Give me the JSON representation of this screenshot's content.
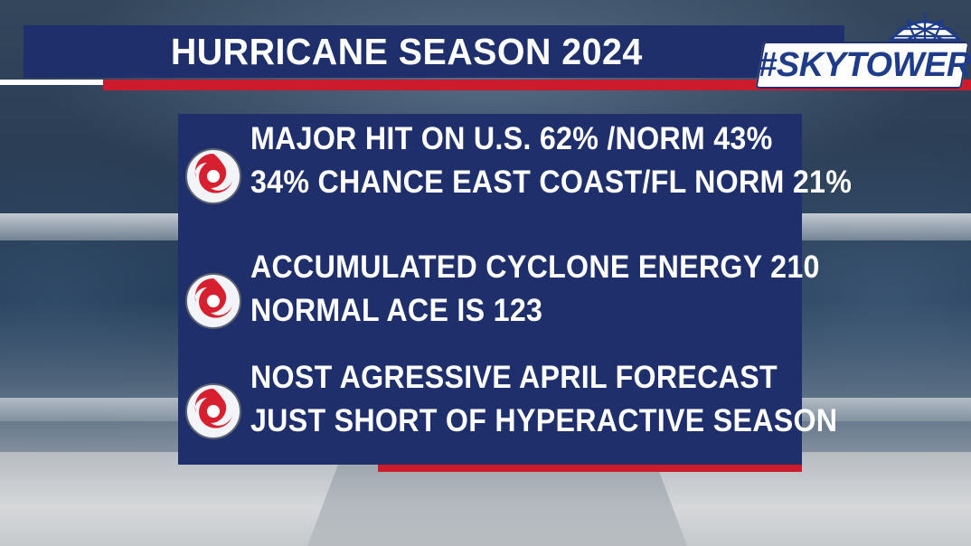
{
  "title": "HURRICANE SEASON 2024",
  "logo": {
    "text": "#SKYTOWER",
    "icon": "skytower-dome-icon"
  },
  "items": [
    {
      "icon": "hurricane-icon",
      "lines": [
        "MAJOR HIT ON U.S. 62% /NORM 43%",
        "34% CHANCE EAST COAST/FL NORM 21%"
      ]
    },
    {
      "icon": "hurricane-icon",
      "lines": [
        "ACCUMULATED CYCLONE ENERGY 210",
        "NORMAL ACE IS 123"
      ]
    },
    {
      "icon": "hurricane-icon",
      "lines": [
        "NOST AGRESSIVE APRIL FORECAST",
        "JUST SHORT OF HYPERACTIVE SEASON"
      ]
    }
  ],
  "colors": {
    "panel": "#1f2f6b",
    "accent_red": "#cc1b2c",
    "text": "#ffffff"
  }
}
